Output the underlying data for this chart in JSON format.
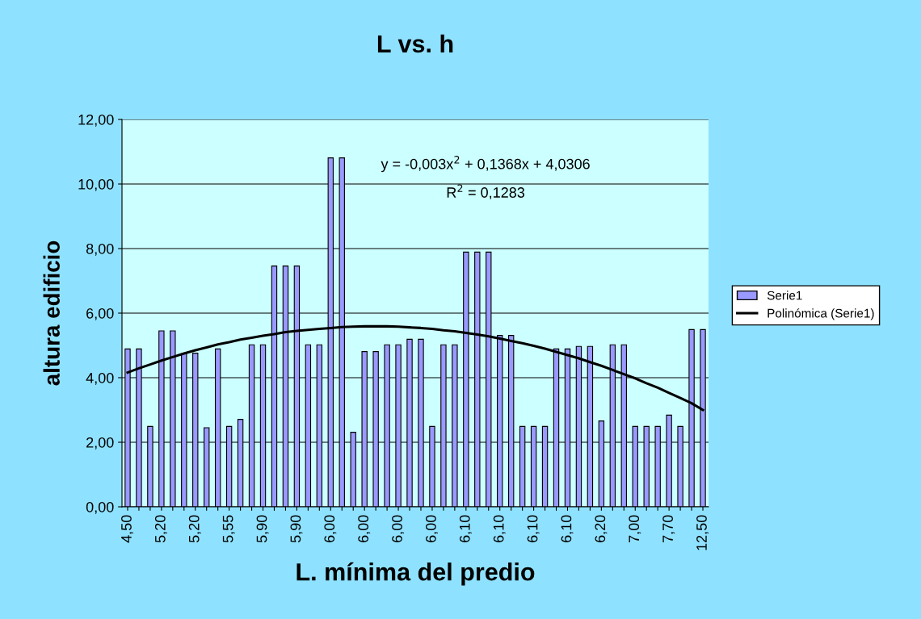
{
  "chart_data": {
    "type": "bar",
    "title": "L vs. h",
    "xlabel": "L. mínima del predio",
    "ylabel": "altura edificio",
    "categories": [
      "4,50",
      null,
      null,
      "5,20",
      null,
      null,
      "5,20",
      null,
      null,
      "5,55",
      null,
      null,
      "5,90",
      null,
      null,
      "5,90",
      null,
      null,
      "6,00",
      null,
      null,
      "6,00",
      null,
      null,
      "6,00",
      null,
      null,
      "6,00",
      null,
      null,
      "6,10",
      null,
      null,
      "6,10",
      null,
      null,
      "6,10",
      null,
      null,
      "6,10",
      null,
      null,
      "6,20",
      null,
      null,
      "7,00",
      null,
      null,
      "7,70",
      null,
      null,
      "12,50"
    ],
    "series": [
      {
        "name": "Serie1",
        "color": "#9999ff",
        "values": [
          4.89,
          4.89,
          2.49,
          5.45,
          5.45,
          4.74,
          4.76,
          2.45,
          4.89,
          2.49,
          2.71,
          5.02,
          5.02,
          7.46,
          7.46,
          7.46,
          5.02,
          5.02,
          10.81,
          10.81,
          2.31,
          4.81,
          4.81,
          5.02,
          5.02,
          5.19,
          5.19,
          2.49,
          5.02,
          5.02,
          7.89,
          7.89,
          7.89,
          5.31,
          5.31,
          2.49,
          2.49,
          2.49,
          4.89,
          4.89,
          4.97,
          4.97,
          2.66,
          5.02,
          5.02,
          2.49,
          2.49,
          2.49,
          2.84,
          2.49,
          5.49,
          5.49
        ]
      },
      {
        "name": "Polinómica (Serie1)",
        "type": "line",
        "color": "#000000",
        "values": [
          4.16,
          4.29,
          4.41,
          4.53,
          4.64,
          4.75,
          4.85,
          4.94,
          5.03,
          5.1,
          5.18,
          5.24,
          5.3,
          5.35,
          5.41,
          5.45,
          5.48,
          5.51,
          5.54,
          5.57,
          5.58,
          5.59,
          5.59,
          5.59,
          5.58,
          5.56,
          5.54,
          5.51,
          5.47,
          5.44,
          5.39,
          5.34,
          5.28,
          5.21,
          5.14,
          5.07,
          4.99,
          4.9,
          4.8,
          4.7,
          4.6,
          4.48,
          4.37,
          4.24,
          4.11,
          3.98,
          3.83,
          3.69,
          3.53,
          3.37,
          3.21,
          3.0
        ]
      }
    ],
    "ylim": [
      0,
      12
    ],
    "yticks": [
      {
        "value": 0,
        "label": "0,00"
      },
      {
        "value": 2,
        "label": "2,00"
      },
      {
        "value": 4,
        "label": "4,00"
      },
      {
        "value": 6,
        "label": "6,00"
      },
      {
        "value": 8,
        "label": "8,00"
      },
      {
        "value": 10,
        "label": "10,00"
      },
      {
        "value": 12,
        "label": "12,00"
      }
    ],
    "annotations": [
      "y = -0,003x$^{2}$ + 0,1368x + 4,0306",
      "R$^{2}$ = 0,1283"
    ],
    "grid": "y",
    "legend": "right"
  }
}
